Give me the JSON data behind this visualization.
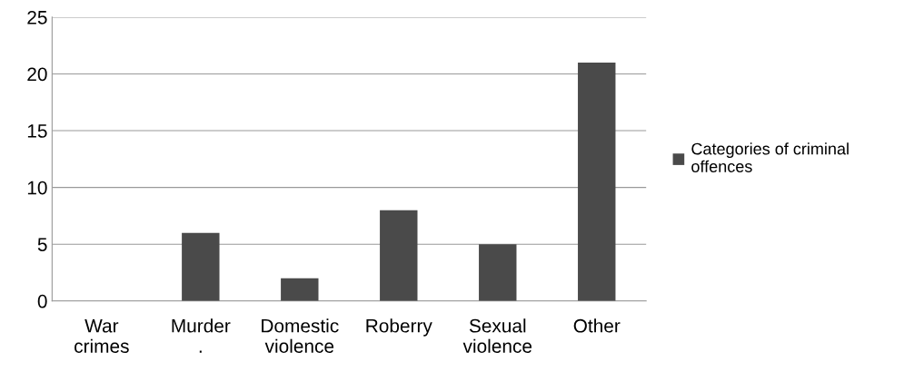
{
  "chart_data": {
    "type": "bar",
    "categories": [
      "War crimes",
      "Murder .",
      "Domestic violence",
      "Roberry",
      "Sexual violence",
      "Other"
    ],
    "series": [
      {
        "name": "Categories of criminal offences",
        "color": "#4a4a4a",
        "values": [
          0,
          6,
          2,
          8,
          5,
          21
        ]
      }
    ],
    "ylim": [
      0,
      25
    ],
    "yticks": [
      0,
      5,
      10,
      15,
      20,
      25
    ],
    "grid": "y",
    "legend": "right"
  }
}
